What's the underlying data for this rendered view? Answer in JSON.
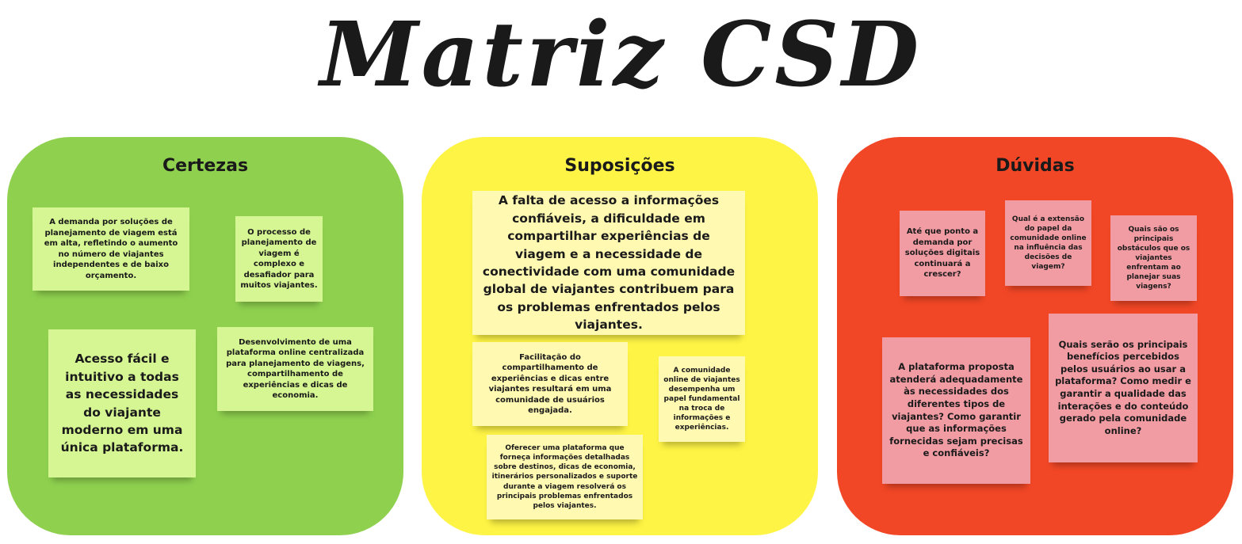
{
  "title": "Matriz CSD",
  "colors": {
    "certezas": "#8fd14f",
    "suposicoes": "#fef445",
    "duvidas": "#f24726",
    "note_green": "#d5f692",
    "note_yellow": "#fff9b1",
    "note_pink": "#f19ba3"
  },
  "columns": [
    {
      "heading": "Certezas",
      "notes": [
        "A demanda por soluções de planejamento de viagem está em alta, refletindo o aumento no número de viajantes independentes e de baixo orçamento.",
        "O processo de planejamento de viagem é complexo e desafiador para muitos viajantes.",
        "Acesso fácil e intuitivo a todas as necessidades do viajante moderno em uma única plataforma.",
        "Desenvolvimento de uma plataforma online centralizada para planejamento de viagens, compartilhamento de experiências e dicas de economia."
      ]
    },
    {
      "heading": "Suposições",
      "notes": [
        "A falta de acesso a informações confiáveis, a dificuldade em compartilhar experiências de viagem e a necessidade de conectividade com uma comunidade global de viajantes contribuem para os problemas enfrentados pelos viajantes.",
        "Facilitação do compartilhamento de experiências e dicas entre viajantes resultará em uma comunidade de usuários engajada.",
        "A comunidade online de viajantes desempenha um papel fundamental na troca de informações e experiências.",
        "Oferecer uma plataforma que forneça informações detalhadas sobre destinos, dicas de economia, itinerários personalizados e suporte durante a viagem resolverá os principais problemas enfrentados pelos viajantes."
      ]
    },
    {
      "heading": "Dúvidas",
      "notes": [
        "Até que ponto a demanda por soluções digitais continuará a crescer?",
        "Qual é a extensão do papel da comunidade online na influência das decisões de viagem?",
        "Quais são os principais obstáculos que os viajantes enfrentam ao planejar suas viagens?",
        "A plataforma proposta atenderá adequadamente às necessidades dos diferentes tipos de viajantes? Como garantir que as informações fornecidas sejam precisas e confiáveis?",
        "Quais serão os principais benefícios percebidos pelos usuários ao usar a plataforma? Como medir e garantir a qualidade das interações e do conteúdo gerado pela comunidade online?"
      ]
    }
  ]
}
